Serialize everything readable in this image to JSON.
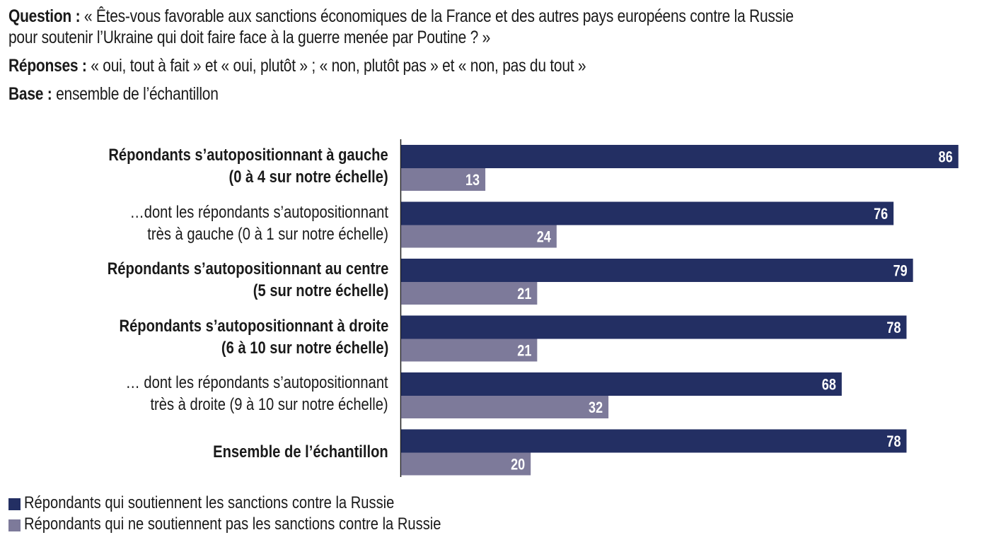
{
  "header": {
    "question_label": "Question :",
    "question_line1": " « Êtes-vous favorable aux sanctions économiques de la France et des autres pays européens contre la Russie",
    "question_line2": "pour soutenir l’Ukraine qui doit faire face à la guerre menée par Poutine ? »",
    "responses_label": "Réponses :",
    "responses_text": " « oui, tout à fait » et « oui, plutôt » ; « non, plutôt pas » et « non, pas du tout »",
    "base_label": "Base :",
    "base_text": " ensemble de l’échantillon"
  },
  "colors": {
    "support": "#232f63",
    "no_support": "#7d7a9a",
    "value_label": "#ffffff",
    "axis": "#1a1a1a"
  },
  "chart_data": {
    "type": "bar",
    "orientation": "horizontal",
    "title": "",
    "xlabel": "",
    "ylabel": "",
    "xlim": [
      0,
      100
    ],
    "grid": false,
    "legend_position": "bottom-left",
    "categories": [
      {
        "line1": "Répondants s’autopositionnant à gauche",
        "line2": "(0 à 4 sur notre échelle)",
        "bold": true
      },
      {
        "line1": "…dont les répondants s’autopositionnant",
        "line2": "très à gauche (0 à 1 sur notre échelle)",
        "bold": false
      },
      {
        "line1": "Répondants s’autopositionnant au centre",
        "line2": "(5 sur notre échelle)",
        "bold": true
      },
      {
        "line1": "Répondants s’autopositionnant à droite",
        "line2": "(6 à 10 sur notre échelle)",
        "bold": true
      },
      {
        "line1": "… dont les répondants s’autopositionnant",
        "line2": "très à droite (9 à 10 sur notre échelle)",
        "bold": false
      },
      {
        "line1": "Ensemble de l’échantillon",
        "line2": "",
        "bold": true
      }
    ],
    "series": [
      {
        "name": "Répondants qui soutiennent les sanctions contre la Russie",
        "color": "#232f63",
        "values": [
          86,
          76,
          79,
          78,
          68,
          78
        ]
      },
      {
        "name": "Répondants qui ne soutiennent pas les sanctions contre la Russie",
        "color": "#7d7a9a",
        "values": [
          13,
          24,
          21,
          21,
          32,
          20
        ]
      }
    ]
  }
}
